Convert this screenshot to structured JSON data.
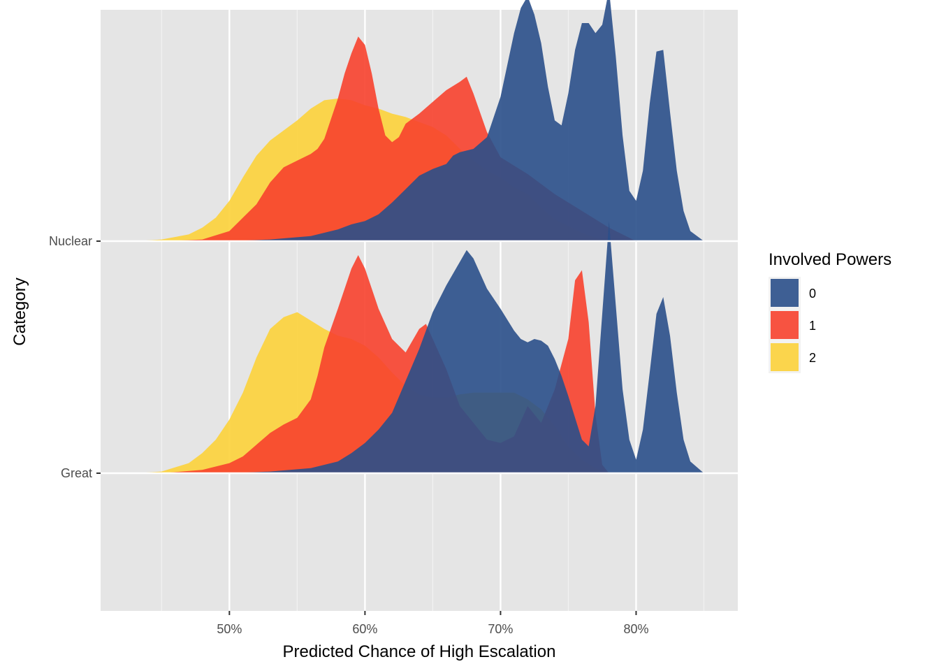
{
  "chart_data": {
    "type": "ridgeline-density",
    "title": "",
    "xlabel": "Predicted Chance of High Escalation",
    "ylabel": "Category",
    "xlim": [
      0.405,
      0.875
    ],
    "x_ticks": [
      0.5,
      0.6,
      0.7,
      0.8
    ],
    "x_tick_labels": [
      "50%",
      "60%",
      "70%",
      "80%"
    ],
    "categories": [
      "Great",
      "Nuclear"
    ],
    "grid": true,
    "legend": {
      "title": "Involved Powers",
      "position": "right",
      "entries": [
        {
          "label": "0",
          "color": "#2A4F8A"
        },
        {
          "label": "1",
          "color": "#F7412D"
        },
        {
          "label": "2",
          "color": "#FCD23A"
        }
      ]
    },
    "series": [
      {
        "category": "Nuclear",
        "group": "2",
        "color": "#FCD23A",
        "x": [
          0.43,
          0.45,
          0.47,
          0.48,
          0.49,
          0.5,
          0.51,
          0.52,
          0.53,
          0.54,
          0.55,
          0.56,
          0.57,
          0.58,
          0.59,
          0.6,
          0.61,
          0.62,
          0.63,
          0.64,
          0.65,
          0.66,
          0.67,
          0.68,
          0.69,
          0.7,
          0.71,
          0.72,
          0.73,
          0.74,
          0.75,
          0.76,
          0.77,
          0.78
        ],
        "y": [
          0.0,
          0.01,
          0.04,
          0.08,
          0.14,
          0.24,
          0.38,
          0.51,
          0.6,
          0.66,
          0.72,
          0.79,
          0.84,
          0.85,
          0.84,
          0.81,
          0.79,
          0.76,
          0.74,
          0.71,
          0.68,
          0.63,
          0.55,
          0.48,
          0.42,
          0.38,
          0.32,
          0.28,
          0.2,
          0.13,
          0.09,
          0.05,
          0.02,
          0.0
        ]
      },
      {
        "category": "Nuclear",
        "group": "1",
        "color": "#F7412D",
        "x": [
          0.45,
          0.48,
          0.5,
          0.51,
          0.52,
          0.53,
          0.54,
          0.55,
          0.56,
          0.565,
          0.57,
          0.58,
          0.585,
          0.59,
          0.595,
          0.6,
          0.605,
          0.61,
          0.615,
          0.62,
          0.625,
          0.63,
          0.64,
          0.65,
          0.66,
          0.67,
          0.675,
          0.68,
          0.69,
          0.7,
          0.72,
          0.74,
          0.76,
          0.78,
          0.8
        ],
        "y": [
          0.0,
          0.01,
          0.06,
          0.14,
          0.22,
          0.35,
          0.44,
          0.48,
          0.52,
          0.55,
          0.61,
          0.85,
          1.0,
          1.12,
          1.22,
          1.17,
          1.0,
          0.79,
          0.63,
          0.59,
          0.62,
          0.7,
          0.76,
          0.83,
          0.9,
          0.95,
          0.98,
          0.88,
          0.65,
          0.5,
          0.4,
          0.28,
          0.18,
          0.08,
          0.0
        ]
      },
      {
        "category": "Nuclear",
        "group": "0",
        "color": "#2A4F8A",
        "x": [
          0.5,
          0.53,
          0.56,
          0.58,
          0.59,
          0.6,
          0.61,
          0.62,
          0.63,
          0.64,
          0.65,
          0.66,
          0.665,
          0.67,
          0.68,
          0.69,
          0.7,
          0.71,
          0.715,
          0.72,
          0.725,
          0.73,
          0.735,
          0.74,
          0.745,
          0.75,
          0.755,
          0.76,
          0.765,
          0.77,
          0.775,
          0.78,
          0.785,
          0.79,
          0.795,
          0.8,
          0.805,
          0.81,
          0.815,
          0.82,
          0.825,
          0.83,
          0.835,
          0.84,
          0.85
        ],
        "y": [
          0.0,
          0.01,
          0.03,
          0.07,
          0.1,
          0.12,
          0.16,
          0.23,
          0.31,
          0.39,
          0.43,
          0.46,
          0.51,
          0.53,
          0.55,
          0.62,
          0.86,
          1.24,
          1.39,
          1.46,
          1.35,
          1.18,
          0.92,
          0.72,
          0.69,
          0.88,
          1.14,
          1.3,
          1.3,
          1.24,
          1.29,
          1.5,
          1.1,
          0.63,
          0.3,
          0.24,
          0.42,
          0.82,
          1.13,
          1.14,
          0.77,
          0.42,
          0.18,
          0.06,
          0.0
        ]
      },
      {
        "category": "Great",
        "group": "2",
        "color": "#FCD23A",
        "x": [
          0.43,
          0.45,
          0.47,
          0.48,
          0.49,
          0.5,
          0.51,
          0.52,
          0.53,
          0.54,
          0.55,
          0.56,
          0.57,
          0.58,
          0.59,
          0.6,
          0.61,
          0.62,
          0.63,
          0.64,
          0.65,
          0.66,
          0.67,
          0.68,
          0.69,
          0.7,
          0.71,
          0.72,
          0.73,
          0.74,
          0.75,
          0.76,
          0.77,
          0.78
        ],
        "y": [
          0.0,
          0.01,
          0.06,
          0.12,
          0.2,
          0.32,
          0.48,
          0.69,
          0.86,
          0.93,
          0.96,
          0.91,
          0.86,
          0.82,
          0.8,
          0.76,
          0.69,
          0.6,
          0.52,
          0.47,
          0.45,
          0.45,
          0.47,
          0.48,
          0.48,
          0.48,
          0.48,
          0.44,
          0.38,
          0.28,
          0.16,
          0.08,
          0.03,
          0.0
        ]
      },
      {
        "category": "Great",
        "group": "1",
        "color": "#F7412D",
        "x": [
          0.45,
          0.48,
          0.5,
          0.51,
          0.52,
          0.53,
          0.54,
          0.55,
          0.56,
          0.565,
          0.57,
          0.58,
          0.585,
          0.59,
          0.595,
          0.6,
          0.605,
          0.61,
          0.62,
          0.63,
          0.64,
          0.645,
          0.65,
          0.66,
          0.67,
          0.68,
          0.69,
          0.7,
          0.71,
          0.72,
          0.73,
          0.74,
          0.75,
          0.755,
          0.76,
          0.765,
          0.77,
          0.775,
          0.78
        ],
        "y": [
          0.0,
          0.02,
          0.06,
          0.1,
          0.17,
          0.24,
          0.29,
          0.33,
          0.44,
          0.58,
          0.75,
          0.98,
          1.1,
          1.22,
          1.3,
          1.22,
          1.1,
          0.98,
          0.8,
          0.72,
          0.86,
          0.89,
          0.8,
          0.62,
          0.4,
          0.3,
          0.2,
          0.18,
          0.22,
          0.4,
          0.3,
          0.5,
          0.8,
          1.15,
          1.21,
          0.9,
          0.35,
          0.05,
          0.0
        ]
      },
      {
        "category": "Great",
        "group": "0",
        "color": "#2A4F8A",
        "x": [
          0.5,
          0.53,
          0.56,
          0.58,
          0.59,
          0.6,
          0.61,
          0.62,
          0.63,
          0.64,
          0.65,
          0.66,
          0.67,
          0.675,
          0.68,
          0.685,
          0.69,
          0.7,
          0.71,
          0.715,
          0.72,
          0.725,
          0.73,
          0.735,
          0.74,
          0.745,
          0.75,
          0.755,
          0.76,
          0.765,
          0.77,
          0.775,
          0.78,
          0.785,
          0.79,
          0.795,
          0.8,
          0.805,
          0.81,
          0.815,
          0.82,
          0.825,
          0.83,
          0.835,
          0.84,
          0.85
        ],
        "y": [
          0.0,
          0.01,
          0.03,
          0.07,
          0.12,
          0.18,
          0.26,
          0.36,
          0.55,
          0.74,
          0.96,
          1.12,
          1.26,
          1.33,
          1.28,
          1.19,
          1.1,
          0.98,
          0.85,
          0.8,
          0.78,
          0.8,
          0.79,
          0.76,
          0.68,
          0.58,
          0.46,
          0.33,
          0.2,
          0.16,
          0.4,
          0.95,
          1.5,
          1.0,
          0.5,
          0.2,
          0.08,
          0.26,
          0.6,
          0.95,
          1.05,
          0.82,
          0.48,
          0.2,
          0.07,
          0.0
        ]
      }
    ]
  }
}
